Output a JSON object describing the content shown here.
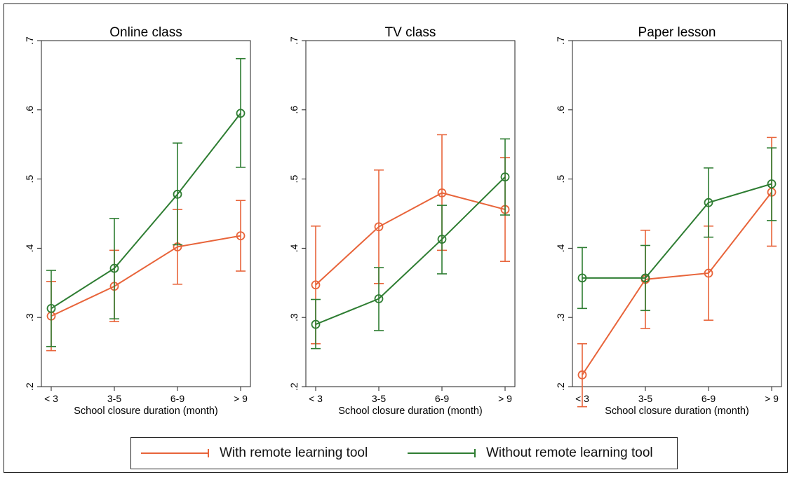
{
  "colors": {
    "with_tool": "#e8643a",
    "without_tool": "#2e7d32",
    "axis": "#222222"
  },
  "legend": {
    "with_label": "With remote learning tool",
    "without_label": "Without remote learning tool"
  },
  "chart_data": [
    {
      "type": "line",
      "title": "Online class",
      "xlabel": "School closure duration (month)",
      "ylabel": "",
      "categories": [
        "< 3",
        "3-5",
        "6-9",
        "> 9"
      ],
      "ylim": [
        0.2,
        0.7
      ],
      "yticks": [
        {
          "v": 0.2,
          "t": ".2"
        },
        {
          "v": 0.3,
          "t": ".3"
        },
        {
          "v": 0.4,
          "t": ".4"
        },
        {
          "v": 0.5,
          "t": ".5"
        },
        {
          "v": 0.6,
          "t": ".6"
        },
        {
          "v": 0.7,
          "t": ".7"
        }
      ],
      "series": [
        {
          "name": "With remote learning tool",
          "color_key": "with_tool",
          "values": [
            0.302,
            0.345,
            0.402,
            0.418
          ],
          "lower": [
            0.252,
            0.294,
            0.348,
            0.367
          ],
          "upper": [
            0.352,
            0.397,
            0.456,
            0.469
          ]
        },
        {
          "name": "Without remote learning tool",
          "color_key": "without_tool",
          "values": [
            0.313,
            0.371,
            0.478,
            0.595
          ],
          "lower": [
            0.258,
            0.298,
            0.405,
            0.517
          ],
          "upper": [
            0.368,
            0.443,
            0.552,
            0.674
          ]
        }
      ]
    },
    {
      "type": "line",
      "title": "TV class",
      "xlabel": "School closure duration (month)",
      "ylabel": "",
      "categories": [
        "< 3",
        "3-5",
        "6-9",
        "> 9"
      ],
      "ylim": [
        0.2,
        0.7
      ],
      "yticks": [
        {
          "v": 0.2,
          "t": ".2"
        },
        {
          "v": 0.3,
          "t": ".3"
        },
        {
          "v": 0.4,
          "t": ".4"
        },
        {
          "v": 0.5,
          "t": ".5"
        },
        {
          "v": 0.6,
          "t": ".6"
        },
        {
          "v": 0.7,
          "t": ".7"
        }
      ],
      "series": [
        {
          "name": "With remote learning tool",
          "color_key": "with_tool",
          "values": [
            0.347,
            0.431,
            0.48,
            0.456
          ],
          "lower": [
            0.262,
            0.349,
            0.397,
            0.381
          ],
          "upper": [
            0.432,
            0.513,
            0.564,
            0.531
          ]
        },
        {
          "name": "Without remote learning tool",
          "color_key": "without_tool",
          "values": [
            0.29,
            0.327,
            0.413,
            0.503
          ],
          "lower": [
            0.255,
            0.281,
            0.363,
            0.448
          ],
          "upper": [
            0.326,
            0.372,
            0.462,
            0.558
          ]
        }
      ]
    },
    {
      "type": "line",
      "title": "Paper lesson",
      "xlabel": "School closure duration (month)",
      "ylabel": "",
      "categories": [
        "< 3",
        "3-5",
        "6-9",
        "> 9"
      ],
      "ylim": [
        0.2,
        0.7
      ],
      "yticks": [
        {
          "v": 0.2,
          "t": ".2"
        },
        {
          "v": 0.3,
          "t": ".3"
        },
        {
          "v": 0.4,
          "t": ".4"
        },
        {
          "v": 0.5,
          "t": ".5"
        },
        {
          "v": 0.6,
          "t": ".6"
        },
        {
          "v": 0.7,
          "t": ".7"
        }
      ],
      "series": [
        {
          "name": "With remote learning tool",
          "color_key": "with_tool",
          "values": [
            0.217,
            0.355,
            0.364,
            0.481
          ],
          "lower": [
            0.171,
            0.284,
            0.296,
            0.403
          ],
          "upper": [
            0.262,
            0.426,
            0.432,
            0.56
          ]
        },
        {
          "name": "Without remote learning tool",
          "color_key": "without_tool",
          "values": [
            0.357,
            0.357,
            0.466,
            0.493
          ],
          "lower": [
            0.313,
            0.31,
            0.416,
            0.44
          ],
          "upper": [
            0.401,
            0.404,
            0.516,
            0.545
          ]
        }
      ]
    }
  ]
}
